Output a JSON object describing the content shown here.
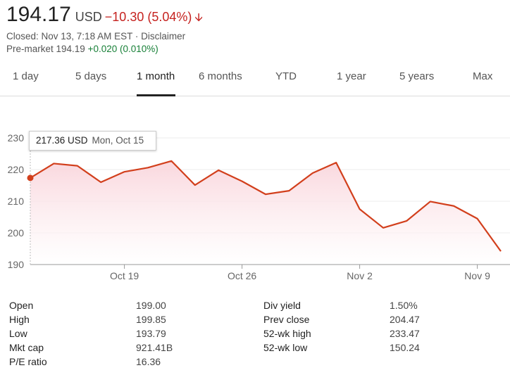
{
  "quote": {
    "price": "194.17",
    "currency": "USD",
    "change": "−10.30 (5.04%)",
    "closed_text": "Closed: Nov 13, 7:18 AM EST",
    "separator": " · ",
    "disclaimer": "Disclaimer",
    "premarket_label": "Pre-market 194.19",
    "premarket_change": "+0.020 (0.010%)"
  },
  "tabs": [
    {
      "label": "1 day",
      "active": false
    },
    {
      "label": "5 days",
      "active": false
    },
    {
      "label": "1 month",
      "active": true
    },
    {
      "label": "6 months",
      "active": false
    },
    {
      "label": "YTD",
      "active": false
    },
    {
      "label": "1 year",
      "active": false
    },
    {
      "label": "5 years",
      "active": false
    },
    {
      "label": "Max",
      "active": false
    }
  ],
  "tooltip": {
    "value": "217.36 USD",
    "date": "Mon, Oct 15"
  },
  "chart_data": {
    "type": "area",
    "x": [
      "2018-10-15",
      "2018-10-16",
      "2018-10-17",
      "2018-10-18",
      "2018-10-19",
      "2018-10-22",
      "2018-10-23",
      "2018-10-24",
      "2018-10-25",
      "2018-10-26",
      "2018-10-29",
      "2018-10-30",
      "2018-10-31",
      "2018-11-01",
      "2018-11-02",
      "2018-11-05",
      "2018-11-06",
      "2018-11-07",
      "2018-11-08",
      "2018-11-09",
      "2018-11-12"
    ],
    "values": [
      217.36,
      221.9,
      221.2,
      216.0,
      219.3,
      220.6,
      222.7,
      215.1,
      219.8,
      216.3,
      212.2,
      213.3,
      218.9,
      222.2,
      207.5,
      201.6,
      203.8,
      209.9,
      208.5,
      204.5,
      194.2
    ],
    "ylim": [
      190,
      230
    ],
    "yticks": [
      190,
      200,
      210,
      220,
      230
    ],
    "xticks": [
      {
        "label": "Oct 19",
        "date": "2018-10-19"
      },
      {
        "label": "Oct 26",
        "date": "2018-10-26"
      },
      {
        "label": "Nov 2",
        "date": "2018-11-02"
      },
      {
        "label": "Nov 9",
        "date": "2018-11-09"
      }
    ],
    "line_color": "#d23f1c",
    "fill_color": "#f9d3da",
    "highlight_index": 0
  },
  "stats": {
    "left": [
      {
        "label": "Open",
        "value": "199.00"
      },
      {
        "label": "High",
        "value": "199.85"
      },
      {
        "label": "Low",
        "value": "193.79"
      },
      {
        "label": "Mkt cap",
        "value": "921.41B"
      },
      {
        "label": "P/E ratio",
        "value": "16.36"
      }
    ],
    "right": [
      {
        "label": "Div yield",
        "value": "1.50%"
      },
      {
        "label": "Prev close",
        "value": "204.47"
      },
      {
        "label": "52-wk high",
        "value": "233.47"
      },
      {
        "label": "52-wk low",
        "value": "150.24"
      }
    ]
  }
}
